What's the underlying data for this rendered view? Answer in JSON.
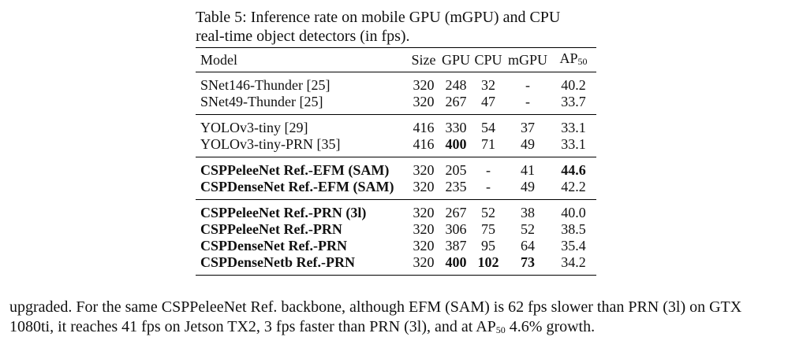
{
  "caption": {
    "line1": "Table 5: Inference rate on mobile GPU (mGPU) and CPU",
    "line2": "real-time object detectors (in fps)."
  },
  "table": {
    "headers": {
      "model": "Model",
      "size": "Size",
      "gpu": "GPU",
      "cpu": "CPU",
      "mgpu": "mGPU",
      "ap_main": "AP",
      "ap_sub": "50"
    },
    "groups": [
      {
        "rows": [
          {
            "model": "SNet146-Thunder [25]",
            "size": "320",
            "gpu": "248",
            "cpu": "32",
            "mgpu": "-",
            "ap": "40.2"
          },
          {
            "model": "SNet49-Thunder [25]",
            "size": "320",
            "gpu": "267",
            "cpu": "47",
            "mgpu": "-",
            "ap": "33.7"
          }
        ]
      },
      {
        "rows": [
          {
            "model": "YOLOv3-tiny [29]",
            "size": "416",
            "gpu": "330",
            "cpu": "54",
            "mgpu": "37",
            "ap": "33.1"
          },
          {
            "model": "YOLOv3-tiny-PRN [35]",
            "size": "416",
            "gpu": "400",
            "cpu": "71",
            "mgpu": "49",
            "ap": "33.1"
          }
        ]
      },
      {
        "rows": [
          {
            "model": "CSPPeleeNet Ref.-EFM (SAM)",
            "size": "320",
            "gpu": "205",
            "cpu": "-",
            "mgpu": "41",
            "ap": "44.6"
          },
          {
            "model": "CSPDenseNet Ref.-EFM (SAM)",
            "size": "320",
            "gpu": "235",
            "cpu": "-",
            "mgpu": "49",
            "ap": "42.2"
          }
        ]
      },
      {
        "rows": [
          {
            "model": "CSPPeleeNet Ref.-PRN (3l)",
            "size": "320",
            "gpu": "267",
            "cpu": "52",
            "mgpu": "38",
            "ap": "40.0"
          },
          {
            "model": "CSPPeleeNet Ref.-PRN",
            "size": "320",
            "gpu": "306",
            "cpu": "75",
            "mgpu": "52",
            "ap": "38.5"
          },
          {
            "model": "CSPDenseNet Ref.-PRN",
            "size": "320",
            "gpu": "387",
            "cpu": "95",
            "mgpu": "64",
            "ap": "35.4"
          },
          {
            "model": "CSPDenseNetb Ref.-PRN",
            "size": "320",
            "gpu": "400",
            "cpu": "102",
            "mgpu": "73",
            "ap": "34.2"
          }
        ]
      }
    ]
  },
  "body_text": {
    "line1": "upgraded. For the same CSPPeleeNet Ref. backbone, although EFM (SAM) is 62 fps slower than PRN (3l) on GTX",
    "line2_a": "1080ti, it reaches 41 fps on Jetson TX2, 3 fps faster than PRN (3l), and at AP",
    "line2_sub": "50",
    "line2_b": " 4.6% growth."
  }
}
